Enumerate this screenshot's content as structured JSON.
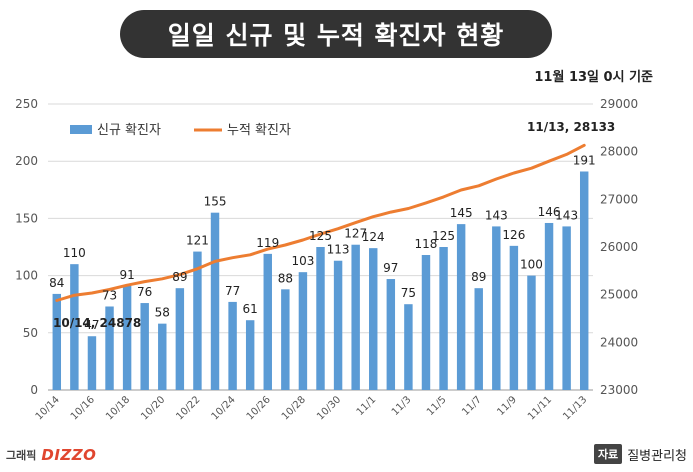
{
  "title": "일일 신규 및 누적 확진자 현황",
  "reference_date": "11월 13일 0시 기준",
  "footer": {
    "graphic_label": "그래픽",
    "brand": "DIZZO",
    "source_badge": "자료",
    "source": "질병관리청"
  },
  "colors": {
    "bar": "#5b9bd5",
    "line": "#ed7d31",
    "title_bg": "#333333"
  },
  "chart_data": {
    "type": "bar+line",
    "series": [
      {
        "name": "신규 확진자",
        "type": "bar",
        "axis": "left",
        "values": [
          84,
          110,
          47,
          73,
          91,
          76,
          58,
          89,
          121,
          155,
          77,
          61,
          119,
          88,
          103,
          125,
          113,
          127,
          124,
          97,
          75,
          118,
          125,
          145,
          89,
          143,
          126,
          100,
          146,
          143,
          191
        ]
      },
      {
        "name": "누적 확진자",
        "type": "line",
        "axis": "right",
        "values": [
          24878,
          24988,
          25035,
          25108,
          25199,
          25275,
          25333,
          25422,
          25543,
          25698,
          25775,
          25836,
          25955,
          26043,
          26146,
          26271,
          26384,
          26511,
          26635,
          26732,
          26807,
          26925,
          27050,
          27195,
          27284,
          27427,
          27553,
          27653,
          27799,
          27942,
          28133
        ]
      }
    ],
    "x_tick_labels": [
      "10/14",
      "10/16",
      "10/18",
      "10/20",
      "10/22",
      "10/24",
      "10/26",
      "10/28",
      "10/30",
      "11/1",
      "11/3",
      "11/5",
      "11/7",
      "11/9",
      "11/11",
      "11/13"
    ],
    "y_left": {
      "ticks": [
        0,
        50,
        100,
        150,
        200,
        250
      ],
      "range": [
        0,
        250
      ]
    },
    "y_right": {
      "ticks": [
        23000,
        24000,
        25000,
        26000,
        27000,
        28000,
        29000
      ],
      "range": [
        23000,
        29000
      ]
    },
    "annotations": [
      "10/14, 24878",
      "11/13, 28133"
    ],
    "legend_position": "top-left",
    "grid": "horizontal"
  }
}
